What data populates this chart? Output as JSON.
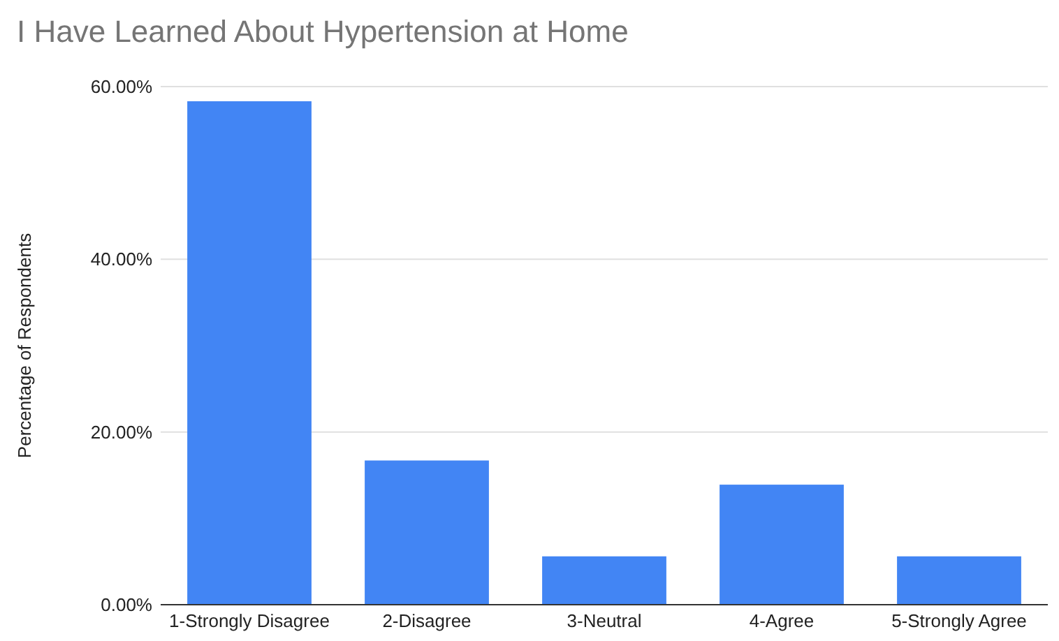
{
  "chart_data": {
    "type": "bar",
    "title": "I Have Learned About Hypertension at Home",
    "ylabel": "Percentage of Respondents",
    "categories": [
      "1-Strongly Disagree",
      "2-Disagree",
      "3-Neutral",
      "4-Agree",
      "5-Strongly Agree"
    ],
    "values": [
      58.3,
      16.7,
      5.6,
      13.9,
      5.6
    ],
    "color": "#4285f4",
    "ylim": [
      0,
      60
    ],
    "yticks": [
      {
        "value": 0,
        "label": "0.00%"
      },
      {
        "value": 20,
        "label": "20.00%"
      },
      {
        "value": 40,
        "label": "40.00%"
      },
      {
        "value": 60,
        "label": "60.00%"
      }
    ],
    "grid": "y"
  }
}
